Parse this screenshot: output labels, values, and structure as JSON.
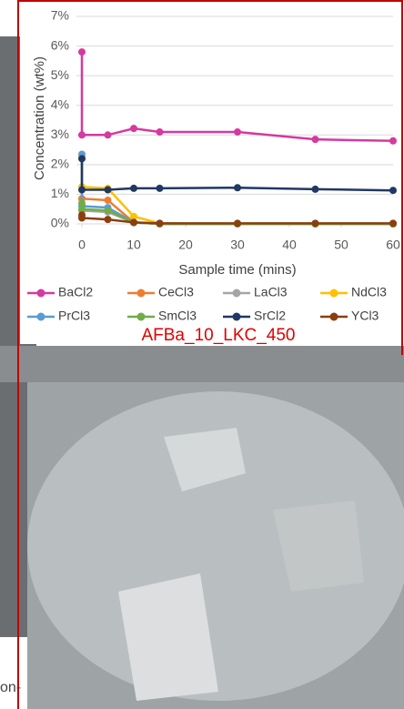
{
  "chart_data": {
    "type": "line",
    "y_axis_title": "Concentration (wt%)",
    "x_axis_title": "Sample time (mins)",
    "x": [
      0,
      0,
      5,
      10,
      15,
      30,
      45,
      60
    ],
    "xlim": [
      0,
      60
    ],
    "xticks": [
      0,
      10,
      20,
      30,
      40,
      50,
      60
    ],
    "ylim": [
      0,
      7
    ],
    "yticks": [
      {
        "value": 0,
        "label": "0%"
      },
      {
        "value": 1,
        "label": "1%"
      },
      {
        "value": 2,
        "label": "2%"
      },
      {
        "value": 3,
        "label": "3%"
      },
      {
        "value": 4,
        "label": "4%"
      },
      {
        "value": 5,
        "label": "5%"
      },
      {
        "value": 6,
        "label": "6%"
      },
      {
        "value": 7,
        "label": "7%"
      }
    ],
    "grid": true,
    "legend": "bottom",
    "series": [
      {
        "name": "BaCl2",
        "color": "#d6399f",
        "values": [
          5.8,
          3.0,
          3.0,
          3.22,
          3.1,
          3.1,
          2.85,
          2.8
        ]
      },
      {
        "name": "CeCl3",
        "color": "#ed7d31",
        "values": [
          0.85,
          0.85,
          0.8,
          0.05,
          0,
          0,
          0,
          0
        ]
      },
      {
        "name": "LaCl3",
        "color": "#a5a5a5",
        "values": [
          0.45,
          0.45,
          0.4,
          0.05,
          0,
          0,
          0,
          0
        ]
      },
      {
        "name": "NdCl3",
        "color": "#ffc000",
        "values": [
          2.3,
          1.25,
          1.2,
          0.25,
          0.02,
          0,
          0,
          0
        ]
      },
      {
        "name": "PrCl3",
        "color": "#5b9bd5",
        "values": [
          2.35,
          0.6,
          0.55,
          0.05,
          0,
          0,
          0,
          0
        ]
      },
      {
        "name": "SmCl3",
        "color": "#70ad47",
        "values": [
          0.7,
          0.5,
          0.45,
          0.05,
          0,
          0,
          0,
          0
        ]
      },
      {
        "name": "SrCl2",
        "color": "#203864",
        "values": [
          2.2,
          1.15,
          1.15,
          1.2,
          1.2,
          1.22,
          1.17,
          1.13
        ]
      },
      {
        "name": "YCl3",
        "color": "#8b3e0f",
        "values": [
          0.3,
          0.2,
          0.15,
          0.05,
          0.02,
          0.02,
          0.02,
          0.02
        ]
      }
    ]
  },
  "photo_label": "AFBa_10_LKC_450",
  "caption_fragment": "on-"
}
